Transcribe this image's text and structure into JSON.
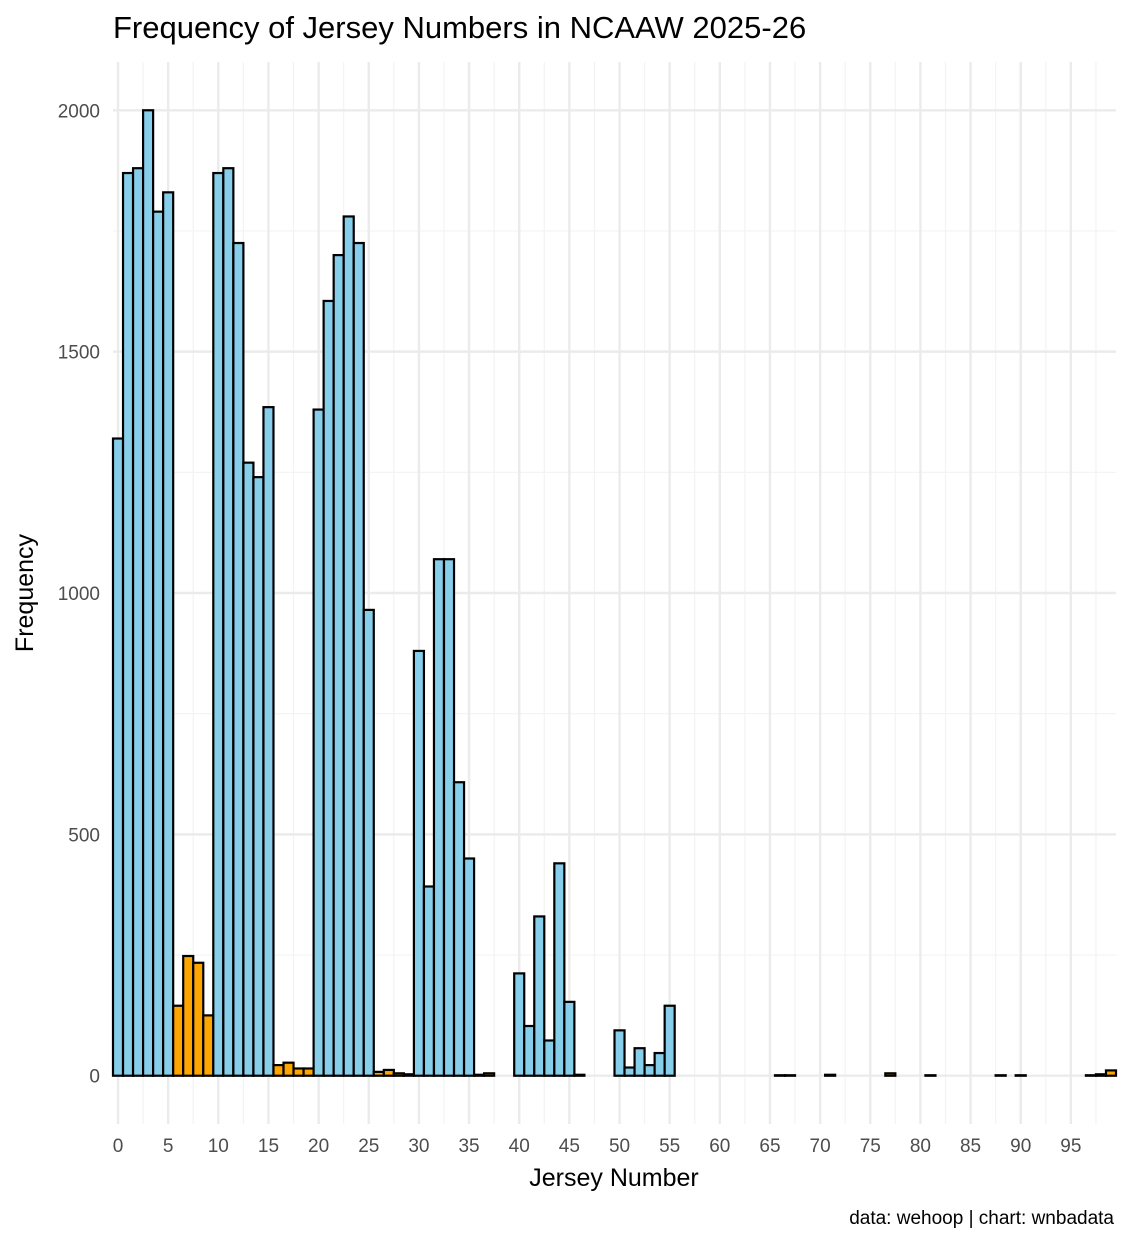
{
  "chart_data": {
    "type": "bar",
    "title": "Frequency of Jersey Numbers in NCAAW 2025-26",
    "xlabel": "Jersey Number",
    "ylabel": "Frequency",
    "caption": "data: wehoop | chart: wnbadata",
    "xlim": [
      -0.5,
      99.5
    ],
    "ylim": [
      -100,
      2100
    ],
    "x_ticks": [
      0,
      5,
      10,
      15,
      20,
      25,
      30,
      35,
      40,
      45,
      50,
      55,
      60,
      65,
      70,
      75,
      80,
      85,
      90,
      95
    ],
    "y_ticks": [
      0,
      500,
      1000,
      1500,
      2000
    ],
    "grid": true,
    "colors": {
      "valid": "#87ceeb",
      "invalid": "#ffa500",
      "outline": "#000000"
    },
    "x": [
      0,
      1,
      2,
      3,
      4,
      5,
      6,
      7,
      8,
      9,
      10,
      11,
      12,
      13,
      14,
      15,
      16,
      17,
      18,
      19,
      20,
      21,
      22,
      23,
      24,
      25,
      26,
      27,
      28,
      29,
      30,
      31,
      32,
      33,
      34,
      35,
      36,
      37,
      38,
      39,
      40,
      41,
      42,
      43,
      44,
      45,
      46,
      47,
      48,
      49,
      50,
      51,
      52,
      53,
      54,
      55,
      56,
      57,
      58,
      59,
      60,
      61,
      62,
      63,
      64,
      65,
      66,
      67,
      68,
      69,
      70,
      71,
      72,
      73,
      74,
      75,
      76,
      77,
      78,
      79,
      80,
      81,
      82,
      83,
      84,
      85,
      86,
      87,
      88,
      89,
      90,
      91,
      92,
      93,
      94,
      95,
      96,
      97,
      98,
      99
    ],
    "values": [
      1320,
      1870,
      1880,
      2000,
      1790,
      1830,
      145,
      248,
      234,
      125,
      1870,
      1880,
      1725,
      1270,
      1240,
      1385,
      22,
      27,
      15,
      15,
      1380,
      1605,
      1700,
      1780,
      1725,
      965,
      8,
      12,
      5,
      3,
      880,
      392,
      1070,
      1070,
      608,
      450,
      2,
      5,
      0,
      0,
      212,
      103,
      330,
      73,
      440,
      153,
      2,
      0,
      0,
      0,
      94,
      17,
      57,
      22,
      47,
      145,
      0,
      0,
      0,
      0,
      0,
      0,
      0,
      0,
      0,
      0,
      1,
      1,
      0,
      0,
      0,
      2,
      0,
      0,
      0,
      0,
      0,
      5,
      0,
      0,
      0,
      1,
      0,
      0,
      0,
      0,
      0,
      0,
      1,
      0,
      1,
      0,
      0,
      0,
      0,
      0,
      0,
      1,
      3,
      11
    ],
    "categories_by_bar": [
      "valid",
      "valid",
      "valid",
      "valid",
      "valid",
      "valid",
      "invalid",
      "invalid",
      "invalid",
      "invalid",
      "valid",
      "valid",
      "valid",
      "valid",
      "valid",
      "valid",
      "invalid",
      "invalid",
      "invalid",
      "invalid",
      "valid",
      "valid",
      "valid",
      "valid",
      "valid",
      "valid",
      "invalid",
      "invalid",
      "invalid",
      "invalid",
      "valid",
      "valid",
      "valid",
      "valid",
      "valid",
      "valid",
      "invalid",
      "invalid",
      "invalid",
      "invalid",
      "valid",
      "valid",
      "valid",
      "valid",
      "valid",
      "valid",
      "invalid",
      "invalid",
      "invalid",
      "invalid",
      "valid",
      "valid",
      "valid",
      "valid",
      "valid",
      "valid",
      "invalid",
      "invalid",
      "invalid",
      "invalid",
      "invalid",
      "invalid",
      "invalid",
      "invalid",
      "invalid",
      "invalid",
      "invalid",
      "invalid",
      "invalid",
      "invalid",
      "invalid",
      "invalid",
      "invalid",
      "invalid",
      "invalid",
      "invalid",
      "invalid",
      "invalid",
      "invalid",
      "invalid",
      "invalid",
      "invalid",
      "invalid",
      "invalid",
      "invalid",
      "invalid",
      "invalid",
      "invalid",
      "invalid",
      "invalid",
      "invalid",
      "invalid",
      "invalid",
      "invalid",
      "invalid",
      "invalid",
      "invalid",
      "invalid",
      "invalid",
      "invalid"
    ]
  }
}
